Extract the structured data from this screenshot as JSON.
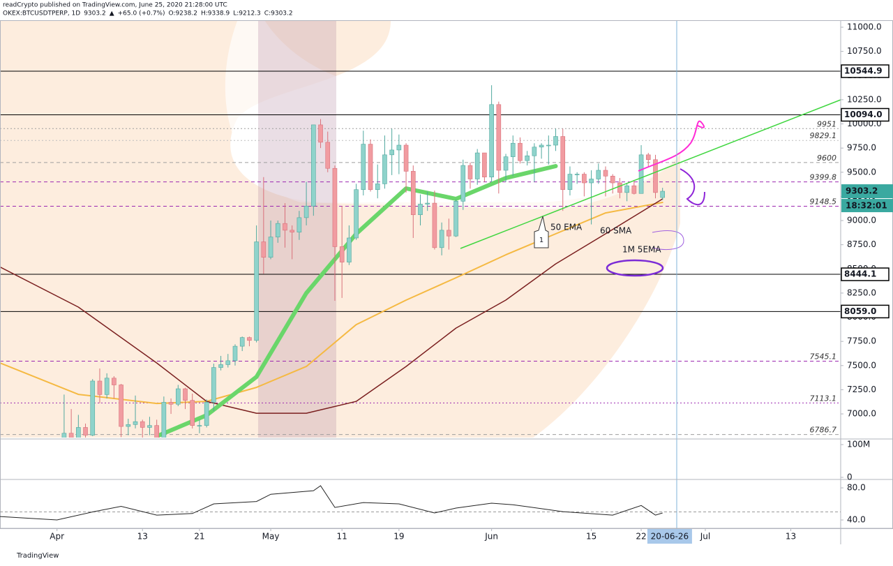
{
  "chart_data": {
    "type": "candlestick",
    "title": "readCrypto published on TradingView.com, June 25, 2020 21:28:00 UTC",
    "legend_line": [
      "OKEX:BTCUSDTPERP, 1D",
      "9303.2",
      "▲",
      "+65.0 (+0.7%)",
      "O:9238.2",
      "H:9338.9",
      "L:9212.3",
      "C:9303.2"
    ],
    "footer": "TradingView",
    "up_color": "#8fd3cb",
    "down_color": "#f19ca1",
    "xlim": [
      "2020-03-24",
      "2020-07-20"
    ],
    "ylim": [
      6755,
      11065
    ],
    "x": [
      "2020-04-01",
      "2020-04-02",
      "2020-04-03",
      "2020-04-04",
      "2020-04-05",
      "2020-04-06",
      "2020-04-07",
      "2020-04-08",
      "2020-04-09",
      "2020-04-10",
      "2020-04-11",
      "2020-04-12",
      "2020-04-13",
      "2020-04-14",
      "2020-04-15",
      "2020-04-16",
      "2020-04-17",
      "2020-04-18",
      "2020-04-19",
      "2020-04-20",
      "2020-04-21",
      "2020-04-22",
      "2020-04-23",
      "2020-04-24",
      "2020-04-25",
      "2020-04-26",
      "2020-04-27",
      "2020-04-28",
      "2020-04-29",
      "2020-04-30",
      "2020-05-01",
      "2020-05-02",
      "2020-05-03",
      "2020-05-04",
      "2020-05-05",
      "2020-05-06",
      "2020-05-07",
      "2020-05-08",
      "2020-05-09",
      "2020-05-10",
      "2020-05-11",
      "2020-05-12",
      "2020-05-13",
      "2020-05-14",
      "2020-05-15",
      "2020-05-16",
      "2020-05-17",
      "2020-05-18",
      "2020-05-19",
      "2020-05-20",
      "2020-05-21",
      "2020-05-22",
      "2020-05-23",
      "2020-05-24",
      "2020-05-25",
      "2020-05-26",
      "2020-05-27",
      "2020-05-28",
      "2020-05-29",
      "2020-05-30",
      "2020-05-31",
      "2020-06-01",
      "2020-06-02",
      "2020-06-03",
      "2020-06-04",
      "2020-06-05",
      "2020-06-06",
      "2020-06-07",
      "2020-06-08",
      "2020-06-09",
      "2020-06-10",
      "2020-06-11",
      "2020-06-12",
      "2020-06-13",
      "2020-06-14",
      "2020-06-15",
      "2020-06-16",
      "2020-06-17",
      "2020-06-18",
      "2020-06-19",
      "2020-06-20",
      "2020-06-21",
      "2020-06-22",
      "2020-06-23",
      "2020-06-24",
      "2020-06-25"
    ],
    "ohlc": [
      [
        6420,
        6700,
        6180,
        6640
      ],
      [
        6640,
        7200,
        6600,
        6800
      ],
      [
        6800,
        7050,
        6650,
        6730
      ],
      [
        6730,
        6990,
        6680,
        6860
      ],
      [
        6860,
        6900,
        6680,
        6780
      ],
      [
        6780,
        7360,
        6770,
        7340
      ],
      [
        7340,
        7470,
        7110,
        7200
      ],
      [
        7200,
        7420,
        7160,
        7370
      ],
      [
        7370,
        7390,
        7160,
        7300
      ],
      [
        7300,
        7310,
        6760,
        6870
      ],
      [
        6870,
        6950,
        6780,
        6890
      ],
      [
        6890,
        7190,
        6850,
        6920
      ],
      [
        6920,
        6940,
        6600,
        6860
      ],
      [
        6860,
        6970,
        6780,
        6880
      ],
      [
        6880,
        6940,
        6620,
        6640
      ],
      [
        6640,
        7180,
        6560,
        7120
      ],
      [
        7120,
        7160,
        7000,
        7100
      ],
      [
        7100,
        7300,
        7080,
        7260
      ],
      [
        7260,
        7270,
        7050,
        7140
      ],
      [
        7140,
        7210,
        6850,
        6880
      ],
      [
        6880,
        6940,
        6800,
        6880
      ],
      [
        6880,
        7150,
        6860,
        7120
      ],
      [
        7120,
        7520,
        7030,
        7480
      ],
      [
        7480,
        7600,
        7450,
        7510
      ],
      [
        7510,
        7620,
        7480,
        7550
      ],
      [
        7550,
        7720,
        7500,
        7700
      ],
      [
        7700,
        7800,
        7650,
        7790
      ],
      [
        7790,
        7800,
        7700,
        7760
      ],
      [
        7760,
        8950,
        7740,
        8780
      ],
      [
        8780,
        9450,
        8450,
        8620
      ],
      [
        8620,
        9000,
        8600,
        8830
      ],
      [
        8830,
        9000,
        8770,
        8970
      ],
      [
        8970,
        9180,
        8720,
        8900
      ],
      [
        8900,
        8950,
        8600,
        8880
      ],
      [
        8880,
        9100,
        8800,
        9030
      ],
      [
        9030,
        9400,
        8950,
        9150
      ],
      [
        9150,
        9990,
        9050,
        9990
      ],
      [
        9990,
        10050,
        9750,
        9810
      ],
      [
        9810,
        9920,
        9500,
        9540
      ],
      [
        9540,
        9570,
        8170,
        8730
      ],
      [
        8730,
        9150,
        8200,
        8570
      ],
      [
        8570,
        8950,
        8540,
        8820
      ],
      [
        8820,
        9380,
        8800,
        9320
      ],
      [
        9320,
        9930,
        9260,
        9790
      ],
      [
        9790,
        9840,
        9300,
        9320
      ],
      [
        9320,
        9580,
        9230,
        9380
      ],
      [
        9380,
        9880,
        9330,
        9680
      ],
      [
        9680,
        9950,
        9470,
        9730
      ],
      [
        9730,
        9890,
        9480,
        9780
      ],
      [
        9780,
        9800,
        9290,
        9510
      ],
      [
        9510,
        9570,
        8820,
        9060
      ],
      [
        9060,
        9270,
        8950,
        9170
      ],
      [
        9170,
        9300,
        9100,
        9180
      ],
      [
        9180,
        9310,
        8700,
        8720
      ],
      [
        8720,
        8980,
        8640,
        8900
      ],
      [
        8900,
        9020,
        8700,
        8840
      ],
      [
        8840,
        9220,
        8830,
        9200
      ],
      [
        9200,
        9630,
        9110,
        9570
      ],
      [
        9570,
        9600,
        9330,
        9430
      ],
      [
        9430,
        9740,
        9370,
        9700
      ],
      [
        9700,
        9700,
        9400,
        9450
      ],
      [
        9450,
        10400,
        9400,
        10200
      ],
      [
        10200,
        10230,
        9280,
        9520
      ],
      [
        9520,
        9690,
        9400,
        9660
      ],
      [
        9660,
        9880,
        9460,
        9800
      ],
      [
        9800,
        9860,
        9590,
        9620
      ],
      [
        9620,
        9720,
        9570,
        9670
      ],
      [
        9670,
        9800,
        9400,
        9760
      ],
      [
        9760,
        9800,
        9640,
        9780
      ],
      [
        9780,
        9880,
        9580,
        9780
      ],
      [
        9780,
        9950,
        9720,
        9870
      ],
      [
        9870,
        9950,
        9100,
        9320
      ],
      [
        9320,
        9560,
        9260,
        9480
      ],
      [
        9480,
        9500,
        9380,
        9480
      ],
      [
        9480,
        9500,
        9250,
        9390
      ],
      [
        9390,
        9520,
        8960,
        9430
      ],
      [
        9430,
        9590,
        9380,
        9520
      ],
      [
        9520,
        9560,
        9250,
        9460
      ],
      [
        9460,
        9480,
        9280,
        9390
      ],
      [
        9390,
        9440,
        9230,
        9290
      ],
      [
        9290,
        9390,
        9200,
        9360
      ],
      [
        9360,
        9420,
        9270,
        9280
      ],
      [
        9280,
        9780,
        9280,
        9680
      ],
      [
        9680,
        9700,
        9560,
        9630
      ],
      [
        9630,
        9680,
        9230,
        9290
      ],
      [
        9238.2,
        9338.9,
        9212.3,
        9303.2
      ]
    ],
    "yticks": [
      {
        "value": 7000,
        "label": "7000.0"
      },
      {
        "value": 7250,
        "label": "7250.0"
      },
      {
        "value": 7500,
        "label": "7500.0"
      },
      {
        "value": 7750,
        "label": "7750.0"
      },
      {
        "value": 8000,
        "label": "8000.0"
      },
      {
        "value": 8250,
        "label": "8250.0"
      },
      {
        "value": 8500,
        "label": "8500.0"
      },
      {
        "value": 8750,
        "label": "8750.0"
      },
      {
        "value": 9000,
        "label": "9000.0"
      },
      {
        "value": 9250,
        "label": "9250.0"
      },
      {
        "value": 9500,
        "label": "9500.0"
      },
      {
        "value": 9750,
        "label": "9750.0"
      },
      {
        "value": 10000,
        "label": "10000.0"
      },
      {
        "value": 10250,
        "label": "10250.0"
      },
      {
        "value": 10500,
        "label": "10500.0"
      },
      {
        "value": 10750,
        "label": "10750.0"
      },
      {
        "value": 11000,
        "label": "11000.0"
      }
    ],
    "xticks": [
      {
        "value": "2020-04-01",
        "label": "Apr"
      },
      {
        "value": "2020-04-13",
        "label": "13"
      },
      {
        "value": "2020-04-21",
        "label": "21"
      },
      {
        "value": "2020-05-01",
        "label": "May"
      },
      {
        "value": "2020-05-11",
        "label": "11"
      },
      {
        "value": "2020-05-19",
        "label": "19"
      },
      {
        "value": "2020-06-01",
        "label": "Jun"
      },
      {
        "value": "2020-06-15",
        "label": "15"
      },
      {
        "value": "2020-06-22",
        "label": "22"
      },
      {
        "value": "2020-07-01",
        "label": "Jul"
      },
      {
        "value": "2020-07-13",
        "label": "13"
      }
    ],
    "levels": [
      {
        "value": 10544.9,
        "label": "10544.9",
        "style": "box",
        "color": "#000000"
      },
      {
        "value": 10094,
        "label": "10094.0",
        "style": "box",
        "color": "#000000"
      },
      {
        "value": 8444.1,
        "label": "8444.1",
        "style": "box",
        "color": "#000000"
      },
      {
        "value": 8059,
        "label": "8059.0",
        "style": "box",
        "color": "#000000"
      },
      {
        "value": 9951,
        "label": 9951,
        "style": "dotted",
        "color": "#9e9e9e"
      },
      {
        "value": 9829.1,
        "label": 9829.1,
        "style": "dotted",
        "color": "#bdbdbd"
      },
      {
        "value": 9600,
        "label": 9600,
        "style": "dashed",
        "color": "#9e9e9e"
      },
      {
        "value": 9399.8,
        "label": 9399.8,
        "style": "dashed",
        "color": "#9c27b0"
      },
      {
        "value": 9148.5,
        "label": 9148.5,
        "style": "dashed",
        "color": "#9c27b0"
      },
      {
        "value": 7545.1,
        "label": 7545.1,
        "style": "dashed",
        "color": "#9c27b0"
      },
      {
        "value": 7113.1,
        "label": 7113.1,
        "style": "dotted",
        "color": "#9c27b0"
      },
      {
        "value": 6786.7,
        "label": 6786.7,
        "style": "dashed",
        "color": "#9e9e9e"
      }
    ],
    "last_price": 9303.2,
    "last_color": "#3aa9a0",
    "countdown": "18:32:01",
    "cursor_date": {
      "value": "2020-06-26",
      "label": "20-06-26"
    },
    "overlays": [
      {
        "color": "#f5b942",
        "width": 2,
        "x": [
          "2020-03-24",
          "2020-04-04",
          "2020-04-15",
          "2020-04-22",
          "2020-04-29",
          "2020-05-06",
          "2020-05-13",
          "2020-05-20",
          "2020-05-27",
          "2020-06-03",
          "2020-06-10",
          "2020-06-17",
          "2020-06-25"
        ],
        "values": [
          7527,
          7202,
          7108,
          7130,
          7274,
          7491,
          7924,
          8177,
          8408,
          8646,
          8863,
          9079,
          9188
        ]
      },
      {
        "color": "#7a1f1f",
        "width": 1.5,
        "x": [
          "2020-03-24",
          "2020-04-04",
          "2020-04-15",
          "2020-04-22",
          "2020-04-29",
          "2020-05-06",
          "2020-05-13",
          "2020-05-20",
          "2020-05-27",
          "2020-06-03",
          "2020-06-10",
          "2020-06-17",
          "2020-06-25"
        ],
        "values": [
          8520,
          8105,
          7527,
          7130,
          7007,
          7007,
          7130,
          7491,
          7888,
          8177,
          8552,
          8863,
          9224
        ]
      },
      {
        "color": "#6ad66a",
        "width": 6,
        "x": [
          "2020-04-15",
          "2020-04-22",
          "2020-04-29",
          "2020-05-06",
          "2020-05-13",
          "2020-05-20",
          "2020-05-27",
          "2020-06-03",
          "2020-06-10"
        ],
        "values": [
          6769,
          6986,
          7383,
          8250,
          8863,
          9332,
          9224,
          9440,
          9563
        ]
      }
    ],
    "annotations": [
      "50 EMA",
      "60 SMA",
      "1M 5EMA",
      "1"
    ],
    "volume_ylim": [
      -4300000,
      115000000
    ],
    "volume_ticks": [
      {
        "value": 100000000,
        "label": "100M"
      },
      0
    ],
    "rsi_ylim": [
      29.6,
      89.6
    ],
    "rsi_ticks": [
      {
        "value": 80,
        "label": "80.0"
      },
      {
        "value": 40,
        "label": "40.0"
      }
    ],
    "rsi_mid": 50,
    "rsi": {
      "color": "#222222",
      "x": [
        "2020-03-24",
        "2020-04-01",
        "2020-04-06",
        "2020-04-10",
        "2020-04-15",
        "2020-04-20",
        "2020-04-23",
        "2020-04-29",
        "2020-05-01",
        "2020-05-07",
        "2020-05-08",
        "2020-05-10",
        "2020-05-14",
        "2020-05-19",
        "2020-05-24",
        "2020-05-27",
        "2020-06-01",
        "2020-06-04",
        "2020-06-11",
        "2020-06-18",
        "2020-06-22",
        "2020-06-24",
        "2020-06-25"
      ],
      "values": [
        44.3,
        40,
        50,
        57,
        46,
        48,
        60,
        63,
        72,
        76.5,
        82.6,
        55.6,
        61.7,
        60,
        48.7,
        54.8,
        60.9,
        59,
        50.4,
        46,
        58,
        46,
        48.7
      ]
    }
  }
}
